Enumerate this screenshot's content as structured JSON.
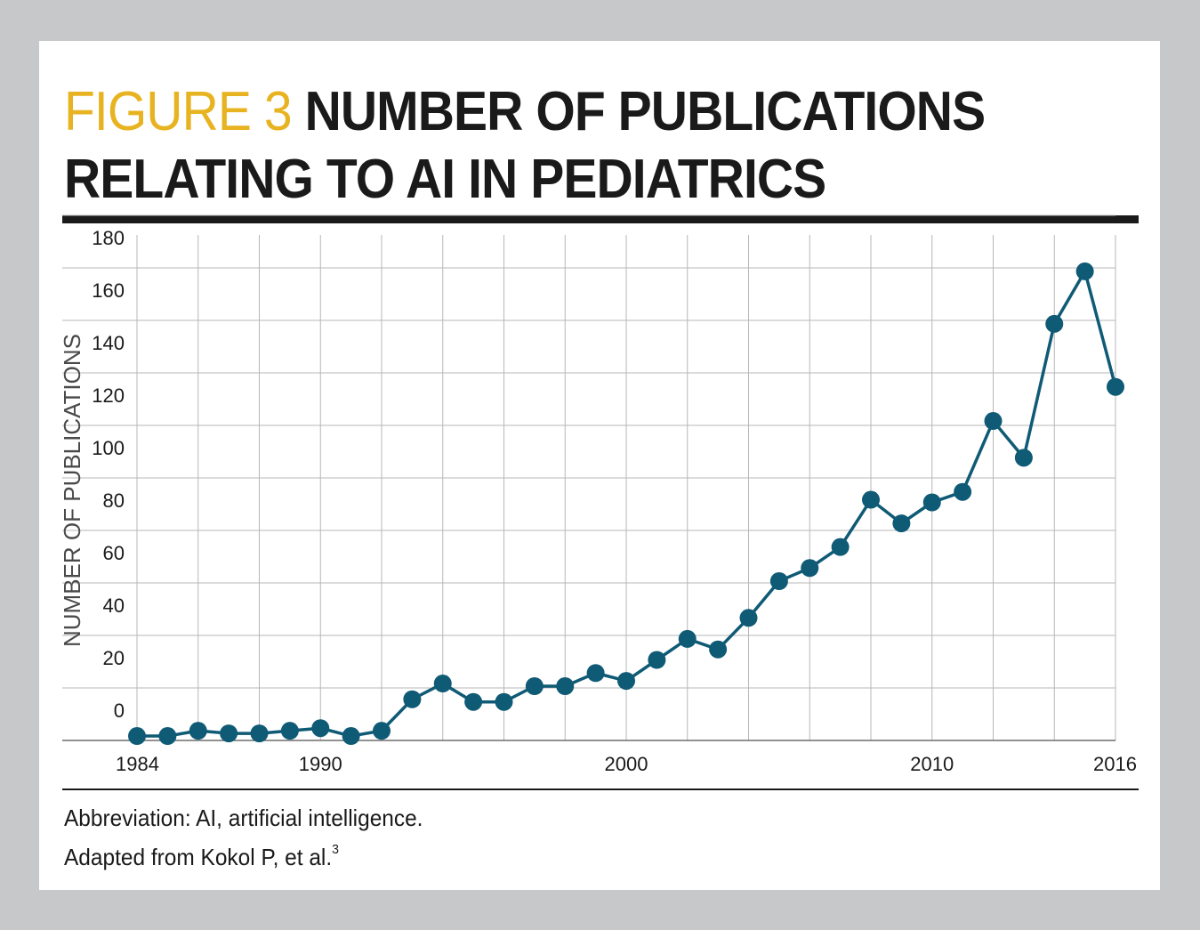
{
  "header": {
    "figure_label": "FIGURE 3",
    "title_line1": "NUMBER OF PUBLICATIONS",
    "title_line2": "RELATING TO AI IN PEDIATRICS"
  },
  "footer": {
    "abbreviation": "Abbreviation: AI, artificial intelligence.",
    "source": "Adapted from Kokol P, et al.",
    "source_ref": "3"
  },
  "colors": {
    "accent": "#e8b321",
    "series": "#0f5a75",
    "grid": "#b7b7b7",
    "text": "#1a1a1a"
  },
  "chart_data": {
    "type": "line",
    "title": "NUMBER OF PUBLICATIONS RELATING TO AI IN PEDIATRICS",
    "xlabel": "",
    "ylabel": "NUMBER OF PUBLICATIONS",
    "x_tick_labels": [
      "1984",
      "1990",
      "2000",
      "2010",
      "2016"
    ],
    "y_tick_labels": [
      "0",
      "20",
      "40",
      "60",
      "80",
      "100",
      "120",
      "140",
      "160",
      "180"
    ],
    "grid": true,
    "series": [
      {
        "name": "Publications",
        "x": [
          1984,
          1985,
          1986,
          1987,
          1988,
          1989,
          1990,
          1991,
          1992,
          1993,
          1994,
          1995,
          1996,
          1997,
          1998,
          1999,
          2000,
          2001,
          2002,
          2003,
          2004,
          2005,
          2006,
          2007,
          2008,
          2009,
          2010,
          2011,
          2012,
          2013,
          2014,
          2015,
          2016
        ],
        "values": [
          1,
          1,
          3,
          2,
          2,
          3,
          4,
          1,
          3,
          15,
          21,
          14,
          14,
          20,
          20,
          25,
          22,
          30,
          38,
          34,
          46,
          60,
          65,
          73,
          91,
          82,
          90,
          94,
          121,
          107,
          158,
          178,
          134
        ]
      }
    ]
  }
}
